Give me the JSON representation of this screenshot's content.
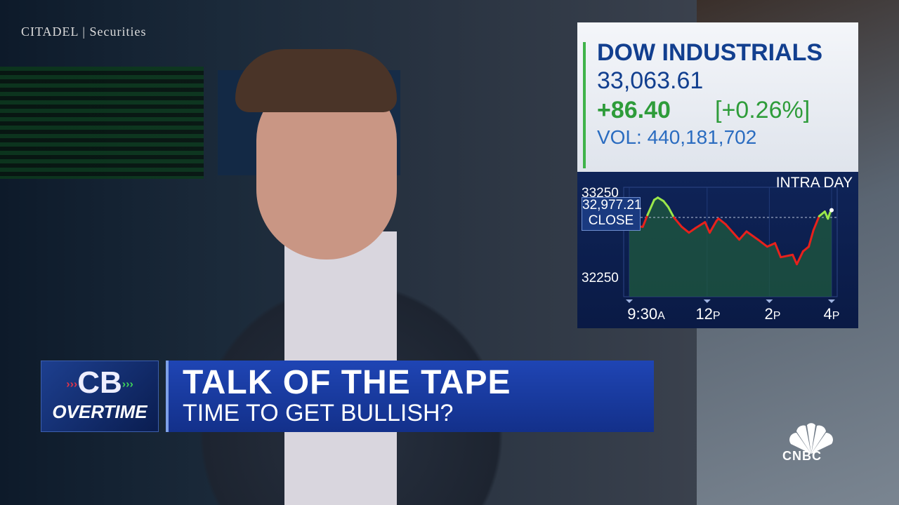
{
  "background": {
    "signage": "CITADEL | Securities"
  },
  "quote": {
    "name": "DOW INDUSTRIALS",
    "price": "33,063.61",
    "change": "+86.40",
    "change_pct": "[+0.26%]",
    "volume_label": "VOL:",
    "volume": "440,181,702",
    "colors": {
      "title": "#123f8f",
      "up": "#2e9c3a",
      "volume": "#2a6cc0"
    }
  },
  "chart_data": {
    "type": "line",
    "title": "INTRA DAY",
    "y_ticks": [
      "33250",
      "32250"
    ],
    "ylim": [
      32250,
      33250
    ],
    "x_ticks": [
      {
        "main": "9:30",
        "suffix": "A",
        "time": "09:30"
      },
      {
        "main": "12",
        "suffix": "P",
        "time": "12:00"
      },
      {
        "main": "2",
        "suffix": "P",
        "time": "14:00"
      },
      {
        "main": "4",
        "suffix": "P",
        "time": "16:00"
      }
    ],
    "reference": {
      "value": 32977.21,
      "label_value": "32,977.21",
      "label": "CLOSE"
    },
    "colors": {
      "above": "#9be84a",
      "below": "#e8211c"
    },
    "series": [
      {
        "points": [
          [
            "09:30",
            32881
          ],
          [
            "09:56",
            32867
          ],
          [
            "10:05",
            33005
          ],
          [
            "10:18",
            33184
          ],
          [
            "10:25",
            33211
          ],
          [
            "10:36",
            33170
          ],
          [
            "10:45",
            33101
          ],
          [
            "10:56",
            32977
          ],
          [
            "11:11",
            32867
          ],
          [
            "11:25",
            32798
          ],
          [
            "11:38",
            32853
          ],
          [
            "11:56",
            32922
          ],
          [
            "12:05",
            32798
          ],
          [
            "12:18",
            32936
          ],
          [
            "12:22",
            32963
          ],
          [
            "12:36",
            32895
          ],
          [
            "13:02",
            32716
          ],
          [
            "13:16",
            32812
          ],
          [
            "13:38",
            32716
          ],
          [
            "13:56",
            32633
          ],
          [
            "14:11",
            32674
          ],
          [
            "14:22",
            32509
          ],
          [
            "14:45",
            32537
          ],
          [
            "14:53",
            32426
          ],
          [
            "15:05",
            32578
          ],
          [
            "15:16",
            32633
          ],
          [
            "15:25",
            32826
          ],
          [
            "15:36",
            32991
          ],
          [
            "15:47",
            33046
          ],
          [
            "15:53",
            32963
          ],
          [
            "15:57",
            33033
          ],
          [
            "16:00",
            33063
          ]
        ]
      }
    ]
  },
  "lower_third": {
    "show_top": "CB",
    "show_bottom": "OVERTIME",
    "title": "TALK OF THE TAPE",
    "subtitle": "TIME TO GET BULLISH?"
  },
  "network": {
    "logo": "CNBC"
  }
}
